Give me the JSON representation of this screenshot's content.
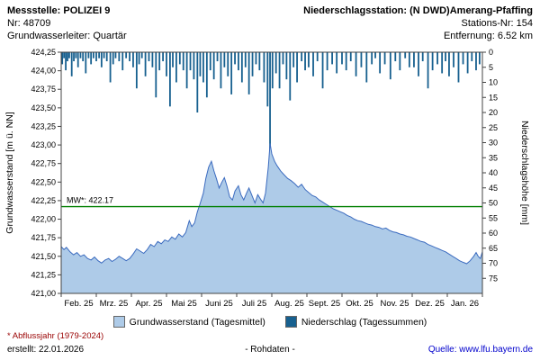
{
  "header": {
    "left": {
      "title": "Messstelle: POLIZEI 9",
      "nr": "Nr: 48709",
      "aquifer": "Grundwasserleiter: Quartär"
    },
    "right": {
      "title": "Niederschlagsstation: (N DWD)Amerang-Pfaffing",
      "nr": "Stations-Nr: 154",
      "distance": "Entfernung: 6.52 km"
    }
  },
  "legend": {
    "groundwater": "Grundwasserstand (Tagesmittel)",
    "precipitation": "Niederschlag (Tagessummen)"
  },
  "footer": {
    "footnote": "* Abflussjahr (1979-2024)",
    "created": "erstellt:  22.01.2026",
    "center": "- Rohdaten -",
    "source": "Quelle: www.lfu.bayern.de"
  },
  "colors": {
    "groundwater_fill": "#aecbe8",
    "groundwater_line": "#3b6bbf",
    "precipitation": "#17608f",
    "mean_line": "#007f00",
    "footnote": "#990000",
    "link": "#0000cc"
  },
  "chart_data": {
    "type": "line+bar",
    "title": "",
    "y_left": {
      "label": "Grundwasserstand [m ü. NN]",
      "min": 421.0,
      "max": 424.25,
      "tick_step": 0.25,
      "decimal_comma": true
    },
    "y_right": {
      "label": "Niederschlagshöhe [mm]",
      "min": 0,
      "max": 80,
      "tick_step": 5,
      "tick_max_label": 75,
      "inverted_from_top": true
    },
    "x_months": 12,
    "x_tick_labels": [
      "Feb. 25",
      "Mrz. 25",
      "Apr. 25",
      "Mai 25",
      "Juni 25",
      "Juli 25",
      "Aug. 25",
      "Sept. 25",
      "Okt. 25",
      "Nov. 25",
      "Dez. 25",
      "Jan. 26"
    ],
    "mean_line": {
      "label": "MW*: 422.17",
      "value": 422.17
    },
    "series": [
      {
        "name": "Grundwasserstand (Tagesmittel)",
        "kind": "area-line",
        "axis": "left",
        "points": [
          [
            0.0,
            421.63
          ],
          [
            0.08,
            421.59
          ],
          [
            0.15,
            421.62
          ],
          [
            0.25,
            421.56
          ],
          [
            0.35,
            421.52
          ],
          [
            0.45,
            421.55
          ],
          [
            0.55,
            421.5
          ],
          [
            0.65,
            421.52
          ],
          [
            0.75,
            421.47
          ],
          [
            0.85,
            421.45
          ],
          [
            0.95,
            421.49
          ],
          [
            1.05,
            421.44
          ],
          [
            1.15,
            421.41
          ],
          [
            1.25,
            421.45
          ],
          [
            1.35,
            421.47
          ],
          [
            1.45,
            421.43
          ],
          [
            1.55,
            421.46
          ],
          [
            1.65,
            421.5
          ],
          [
            1.75,
            421.47
          ],
          [
            1.85,
            421.44
          ],
          [
            1.95,
            421.47
          ],
          [
            2.05,
            421.53
          ],
          [
            2.15,
            421.6
          ],
          [
            2.25,
            421.57
          ],
          [
            2.35,
            421.54
          ],
          [
            2.45,
            421.59
          ],
          [
            2.55,
            421.66
          ],
          [
            2.65,
            421.63
          ],
          [
            2.75,
            421.7
          ],
          [
            2.85,
            421.67
          ],
          [
            2.95,
            421.72
          ],
          [
            3.05,
            421.7
          ],
          [
            3.15,
            421.76
          ],
          [
            3.25,
            421.73
          ],
          [
            3.35,
            421.8
          ],
          [
            3.45,
            421.76
          ],
          [
            3.55,
            421.82
          ],
          [
            3.65,
            421.98
          ],
          [
            3.72,
            421.9
          ],
          [
            3.8,
            421.95
          ],
          [
            3.88,
            422.1
          ],
          [
            3.95,
            422.2
          ],
          [
            4.05,
            422.35
          ],
          [
            4.12,
            422.55
          ],
          [
            4.2,
            422.7
          ],
          [
            4.28,
            422.78
          ],
          [
            4.35,
            422.65
          ],
          [
            4.42,
            422.55
          ],
          [
            4.5,
            422.42
          ],
          [
            4.58,
            422.5
          ],
          [
            4.65,
            422.56
          ],
          [
            4.72,
            422.45
          ],
          [
            4.8,
            422.3
          ],
          [
            4.88,
            422.26
          ],
          [
            4.95,
            422.38
          ],
          [
            5.05,
            422.45
          ],
          [
            5.12,
            422.33
          ],
          [
            5.2,
            422.26
          ],
          [
            5.28,
            422.35
          ],
          [
            5.35,
            422.42
          ],
          [
            5.45,
            422.3
          ],
          [
            5.52,
            422.22
          ],
          [
            5.6,
            422.33
          ],
          [
            5.68,
            422.27
          ],
          [
            5.75,
            422.22
          ],
          [
            5.82,
            422.35
          ],
          [
            5.9,
            422.7
          ],
          [
            5.95,
            423.02
          ],
          [
            6.0,
            422.88
          ],
          [
            6.08,
            422.78
          ],
          [
            6.15,
            422.72
          ],
          [
            6.25,
            422.65
          ],
          [
            6.35,
            422.6
          ],
          [
            6.45,
            422.55
          ],
          [
            6.55,
            422.52
          ],
          [
            6.65,
            422.48
          ],
          [
            6.75,
            422.43
          ],
          [
            6.85,
            422.47
          ],
          [
            6.95,
            422.4
          ],
          [
            7.05,
            422.36
          ],
          [
            7.15,
            422.32
          ],
          [
            7.25,
            422.3
          ],
          [
            7.35,
            422.26
          ],
          [
            7.45,
            422.23
          ],
          [
            7.55,
            422.2
          ],
          [
            7.65,
            422.17
          ],
          [
            7.75,
            422.14
          ],
          [
            7.85,
            422.12
          ],
          [
            7.95,
            422.1
          ],
          [
            8.05,
            422.08
          ],
          [
            8.15,
            422.05
          ],
          [
            8.25,
            422.03
          ],
          [
            8.35,
            422.0
          ],
          [
            8.45,
            421.98
          ],
          [
            8.55,
            421.97
          ],
          [
            8.65,
            421.95
          ],
          [
            8.75,
            421.93
          ],
          [
            8.85,
            421.92
          ],
          [
            8.95,
            421.9
          ],
          [
            9.05,
            421.89
          ],
          [
            9.15,
            421.87
          ],
          [
            9.25,
            421.88
          ],
          [
            9.35,
            421.85
          ],
          [
            9.45,
            421.83
          ],
          [
            9.55,
            421.82
          ],
          [
            9.65,
            421.8
          ],
          [
            9.75,
            421.79
          ],
          [
            9.85,
            421.77
          ],
          [
            9.95,
            421.76
          ],
          [
            10.05,
            421.74
          ],
          [
            10.15,
            421.72
          ],
          [
            10.25,
            421.7
          ],
          [
            10.35,
            421.69
          ],
          [
            10.45,
            421.66
          ],
          [
            10.55,
            421.64
          ],
          [
            10.65,
            421.62
          ],
          [
            10.75,
            421.6
          ],
          [
            10.85,
            421.58
          ],
          [
            10.95,
            421.56
          ],
          [
            11.05,
            421.53
          ],
          [
            11.15,
            421.5
          ],
          [
            11.25,
            421.47
          ],
          [
            11.35,
            421.44
          ],
          [
            11.45,
            421.42
          ],
          [
            11.55,
            421.4
          ],
          [
            11.65,
            421.44
          ],
          [
            11.75,
            421.5
          ],
          [
            11.82,
            421.55
          ],
          [
            11.88,
            421.5
          ],
          [
            11.94,
            421.47
          ],
          [
            12.0,
            421.56
          ]
        ]
      },
      {
        "name": "Niederschlag (Tagessummen)",
        "kind": "bars-from-top",
        "axis": "right",
        "bars": [
          [
            0.03,
            4
          ],
          [
            0.08,
            2
          ],
          [
            0.13,
            6
          ],
          [
            0.18,
            3
          ],
          [
            0.23,
            2
          ],
          [
            0.3,
            8
          ],
          [
            0.36,
            3
          ],
          [
            0.42,
            2
          ],
          [
            0.48,
            5
          ],
          [
            0.55,
            2
          ],
          [
            0.62,
            3
          ],
          [
            0.7,
            7
          ],
          [
            0.78,
            2
          ],
          [
            0.85,
            4
          ],
          [
            0.92,
            2
          ],
          [
            1.0,
            3
          ],
          [
            1.08,
            2
          ],
          [
            1.15,
            5
          ],
          [
            1.22,
            2
          ],
          [
            1.3,
            3
          ],
          [
            1.4,
            10
          ],
          [
            1.48,
            4
          ],
          [
            1.55,
            2
          ],
          [
            1.65,
            3
          ],
          [
            1.75,
            6
          ],
          [
            1.85,
            2
          ],
          [
            1.95,
            3
          ],
          [
            2.05,
            5
          ],
          [
            2.15,
            12
          ],
          [
            2.22,
            4
          ],
          [
            2.3,
            2
          ],
          [
            2.4,
            8
          ],
          [
            2.5,
            3
          ],
          [
            2.6,
            5
          ],
          [
            2.7,
            15
          ],
          [
            2.8,
            6
          ],
          [
            2.9,
            3
          ],
          [
            3.0,
            8
          ],
          [
            3.1,
            18
          ],
          [
            3.18,
            5
          ],
          [
            3.28,
            10
          ],
          [
            3.38,
            4
          ],
          [
            3.48,
            6
          ],
          [
            3.58,
            12
          ],
          [
            3.68,
            6
          ],
          [
            3.78,
            9
          ],
          [
            3.88,
            20
          ],
          [
            3.96,
            8
          ],
          [
            4.05,
            10
          ],
          [
            4.15,
            15
          ],
          [
            4.25,
            6
          ],
          [
            4.35,
            9
          ],
          [
            4.45,
            3
          ],
          [
            4.55,
            12
          ],
          [
            4.65,
            5
          ],
          [
            4.75,
            8
          ],
          [
            4.85,
            14
          ],
          [
            4.95,
            4
          ],
          [
            5.05,
            6
          ],
          [
            5.15,
            10
          ],
          [
            5.25,
            5
          ],
          [
            5.35,
            14
          ],
          [
            5.45,
            8
          ],
          [
            5.55,
            4
          ],
          [
            5.65,
            6
          ],
          [
            5.78,
            10
          ],
          [
            5.88,
            18
          ],
          [
            5.95,
            33
          ],
          [
            6.02,
            12
          ],
          [
            6.12,
            7
          ],
          [
            6.22,
            12
          ],
          [
            6.32,
            4
          ],
          [
            6.42,
            9
          ],
          [
            6.52,
            16
          ],
          [
            6.62,
            5
          ],
          [
            6.72,
            10
          ],
          [
            6.85,
            3
          ],
          [
            6.95,
            6
          ],
          [
            7.05,
            5
          ],
          [
            7.18,
            8
          ],
          [
            7.3,
            3
          ],
          [
            7.45,
            12
          ],
          [
            7.58,
            6
          ],
          [
            7.72,
            4
          ],
          [
            7.85,
            7
          ],
          [
            8.0,
            4
          ],
          [
            8.12,
            6
          ],
          [
            8.25,
            3
          ],
          [
            8.4,
            8
          ],
          [
            8.55,
            5
          ],
          [
            8.7,
            10
          ],
          [
            8.85,
            4
          ],
          [
            8.95,
            2
          ],
          [
            9.08,
            7
          ],
          [
            9.22,
            4
          ],
          [
            9.38,
            9
          ],
          [
            9.52,
            3
          ],
          [
            9.65,
            6
          ],
          [
            9.8,
            2
          ],
          [
            9.92,
            5
          ],
          [
            10.05,
            5
          ],
          [
            10.18,
            8
          ],
          [
            10.3,
            3
          ],
          [
            10.45,
            12
          ],
          [
            10.58,
            6
          ],
          [
            10.72,
            4
          ],
          [
            10.85,
            7
          ],
          [
            10.95,
            3
          ],
          [
            11.05,
            8
          ],
          [
            11.18,
            5
          ],
          [
            11.32,
            10
          ],
          [
            11.45,
            4
          ],
          [
            11.58,
            7
          ],
          [
            11.7,
            3
          ],
          [
            11.82,
            6
          ],
          [
            11.92,
            4
          ]
        ]
      }
    ],
    "grid": false,
    "legend_position": "bottom"
  }
}
